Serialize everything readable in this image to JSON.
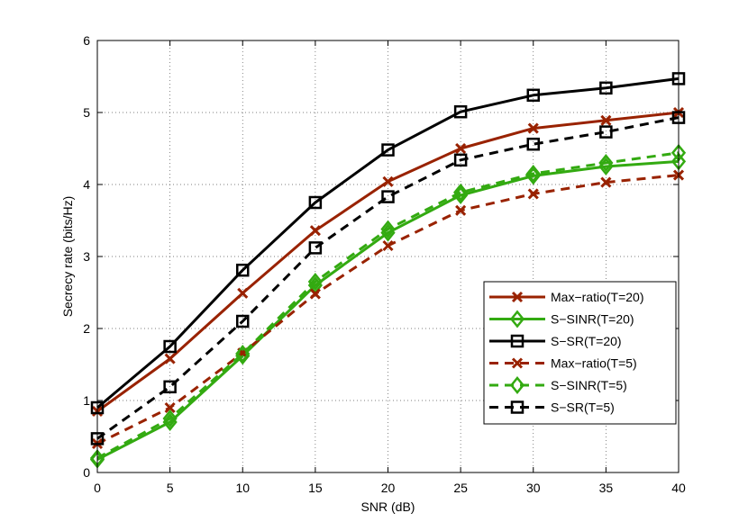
{
  "chart_data": {
    "type": "line",
    "title": "",
    "xlabel": "SNR (dB)",
    "ylabel": "Secrecy rate (bits/Hz)",
    "xlim": [
      0,
      40
    ],
    "ylim": [
      0,
      6
    ],
    "xticks": [
      0,
      5,
      10,
      15,
      20,
      25,
      30,
      35,
      40
    ],
    "yticks": [
      0,
      1,
      2,
      3,
      4,
      5,
      6
    ],
    "grid": true,
    "legend_position": "right-middle",
    "x": [
      0,
      5,
      10,
      15,
      20,
      25,
      30,
      35,
      40
    ],
    "series": [
      {
        "name": "Max−ratio(T=20)",
        "color": "#992200",
        "dash": "solid",
        "marker": "x",
        "values": [
          0.85,
          1.58,
          2.49,
          3.36,
          4.04,
          4.5,
          4.78,
          4.89,
          5.0
        ]
      },
      {
        "name": "S−SINR(T=20)",
        "color": "#33aa11",
        "dash": "solid",
        "marker": "diamond",
        "values": [
          0.18,
          0.7,
          1.62,
          2.6,
          3.33,
          3.85,
          4.12,
          4.25,
          4.32
        ]
      },
      {
        "name": "S−SR(T=20)",
        "color": "#000000",
        "dash": "solid",
        "marker": "square",
        "values": [
          0.9,
          1.75,
          2.81,
          3.75,
          4.48,
          5.01,
          5.24,
          5.34,
          5.47
        ]
      },
      {
        "name": "Max−ratio(T=5)",
        "color": "#992200",
        "dash": "dashed",
        "marker": "x",
        "values": [
          0.4,
          0.9,
          1.66,
          2.48,
          3.15,
          3.64,
          3.87,
          4.03,
          4.13
        ]
      },
      {
        "name": "S−SINR(T=5)",
        "color": "#33aa11",
        "dash": "dashed",
        "marker": "diamond",
        "values": [
          0.2,
          0.75,
          1.65,
          2.65,
          3.38,
          3.89,
          4.15,
          4.3,
          4.44
        ]
      },
      {
        "name": "S−SR(T=5)",
        "color": "#000000",
        "dash": "dashed",
        "marker": "square",
        "values": [
          0.47,
          1.19,
          2.1,
          3.12,
          3.83,
          4.34,
          4.56,
          4.73,
          4.93
        ]
      }
    ]
  }
}
